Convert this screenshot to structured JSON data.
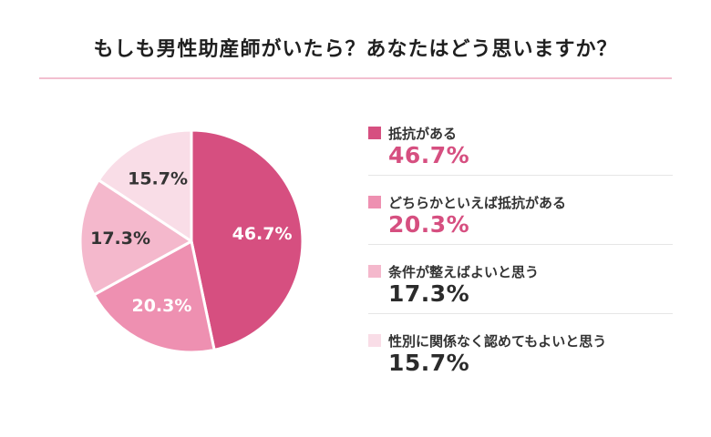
{
  "chart_data": {
    "type": "pie",
    "title": "もしも男性助産師がいたら？あなたはどう思いますか？",
    "unit": "%",
    "categories": [
      "抵抗がある",
      "どちらかといえば抵抗がある",
      "条件が整えばよいと思う",
      "性別に関係なく認めてもよいと思う"
    ],
    "values": [
      46.7,
      20.3,
      17.3,
      15.7
    ],
    "value_labels": [
      "46.7%",
      "20.3%",
      "17.3%",
      "15.7%"
    ],
    "colors": [
      "#d64f80",
      "#ee90b1",
      "#f4b8cc",
      "#f9dde7"
    ],
    "value_text_colors": [
      "#d64f80",
      "#d64f80",
      "#2b2b2b",
      "#2b2b2b"
    ],
    "slice_label_colors": [
      "#ffffff",
      "#ffffff",
      "#333333",
      "#333333"
    ],
    "legend_position": "right",
    "start_angle": "12 o'clock, clockwise"
  }
}
